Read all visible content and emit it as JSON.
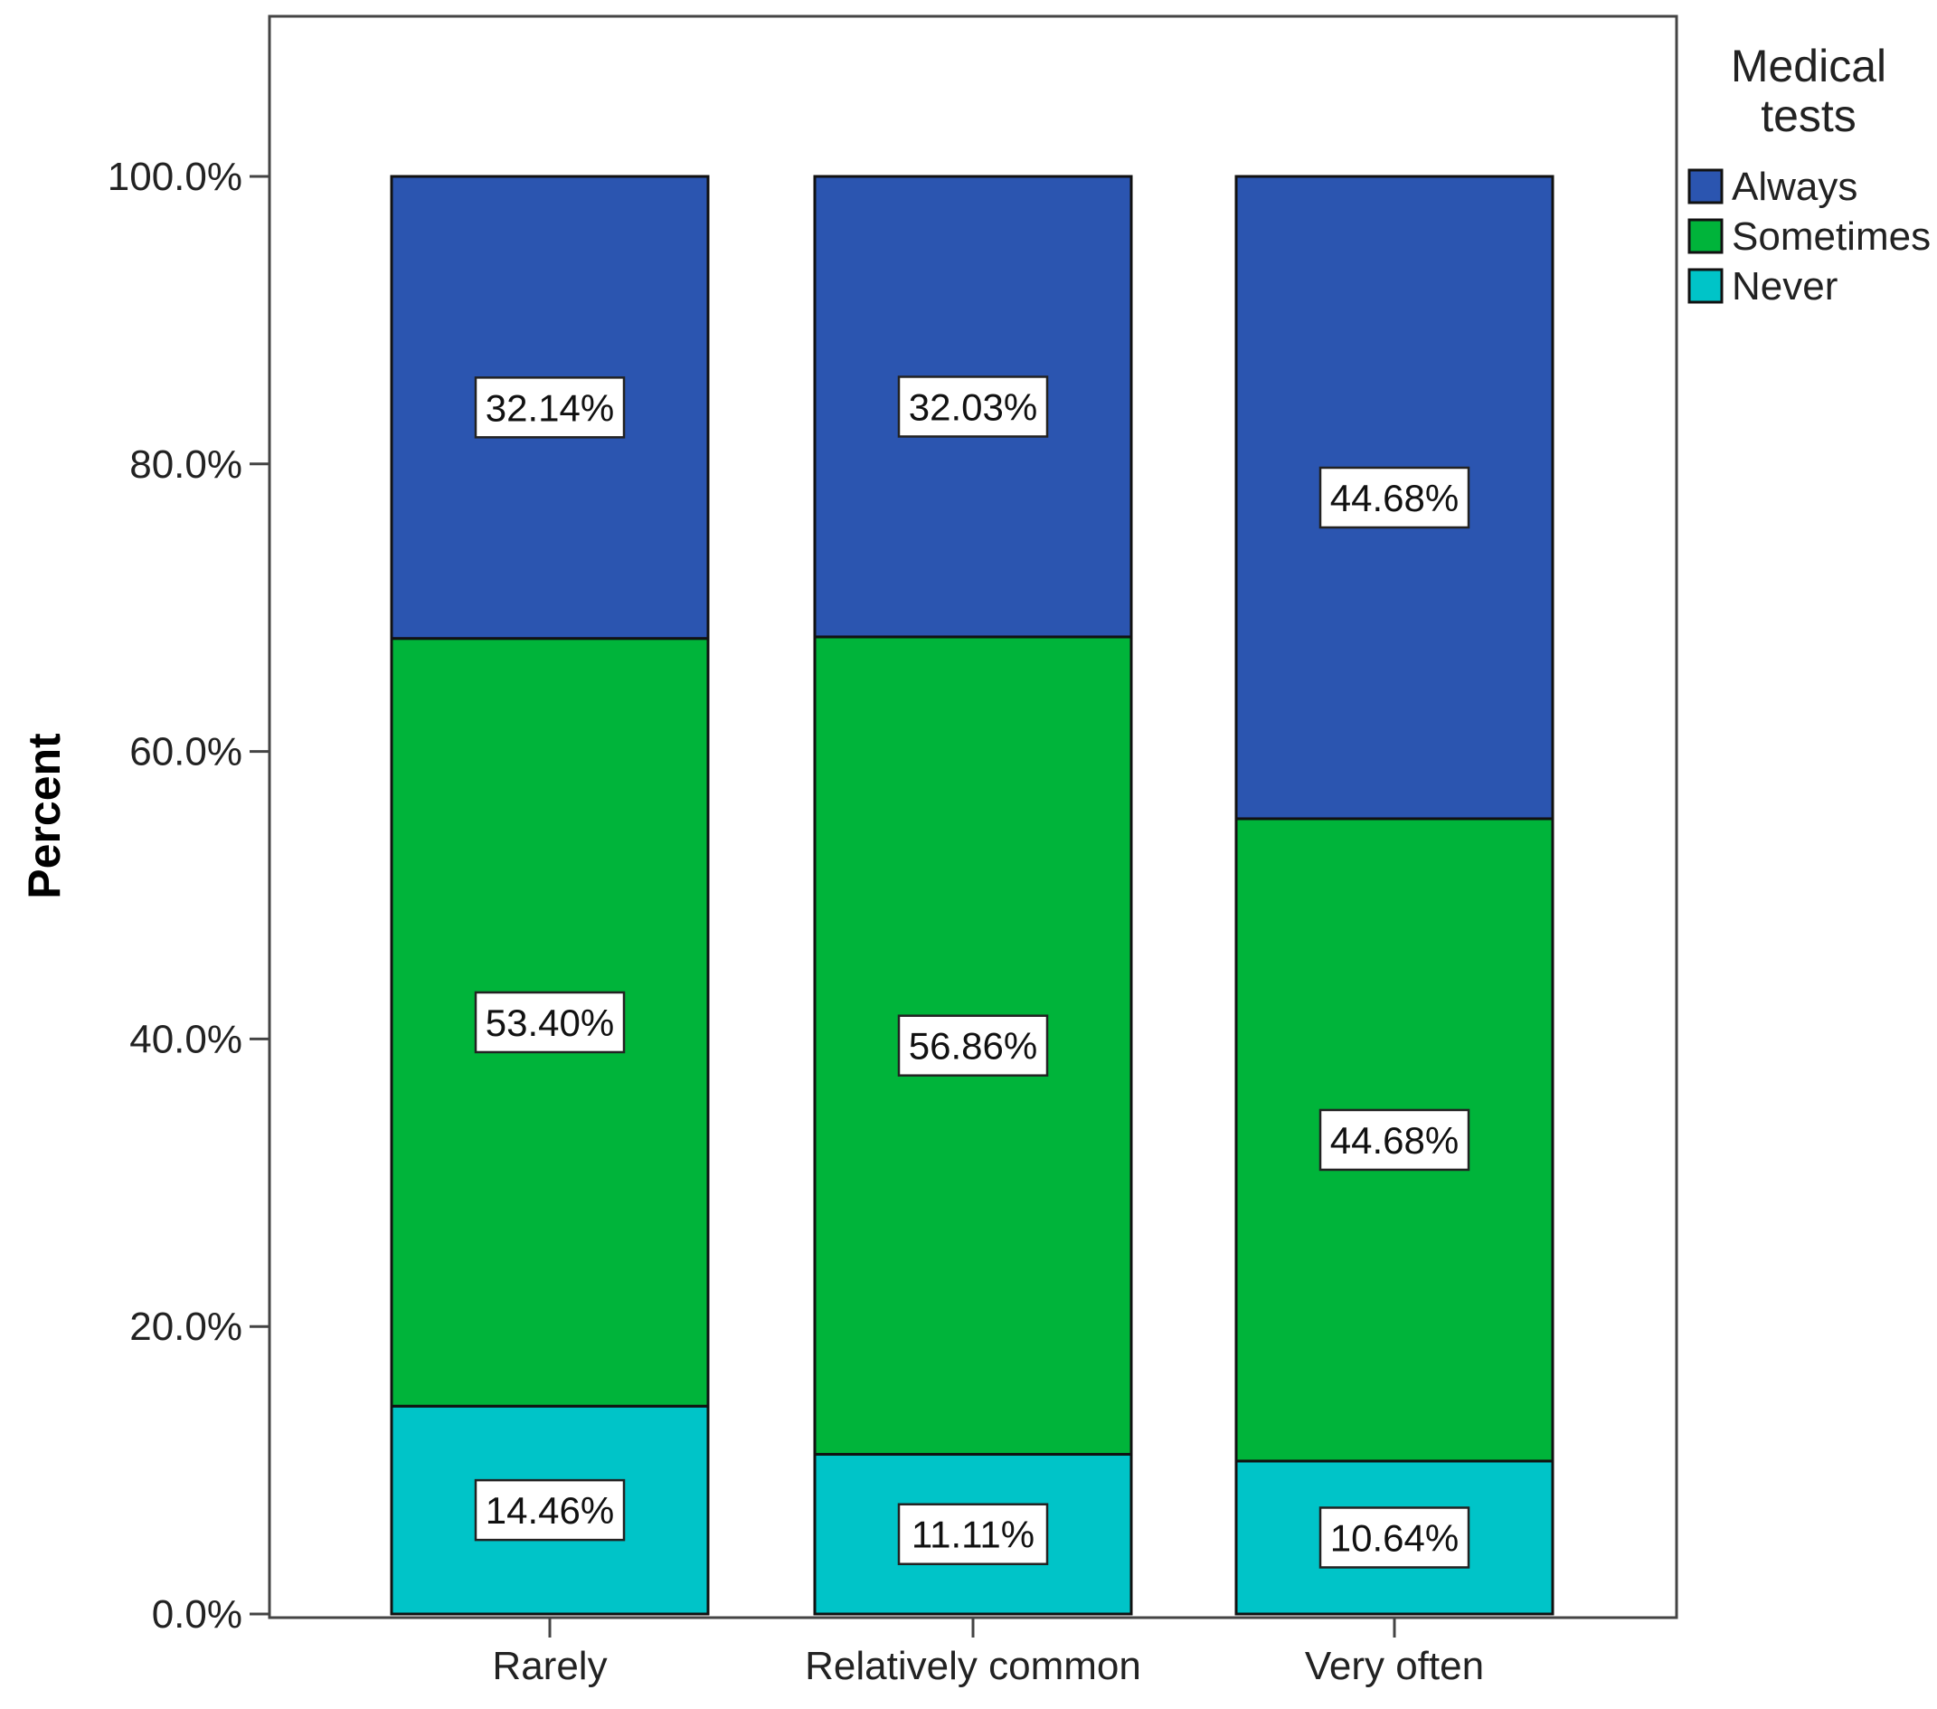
{
  "chart_data": {
    "type": "bar",
    "stacked": true,
    "categories": [
      "Rarely",
      "Relatively common",
      "Very often"
    ],
    "series": [
      {
        "name": "Never",
        "values": [
          14.46,
          11.11,
          10.64
        ],
        "labels": [
          "14.46%",
          "11.11%",
          "10.64%"
        ],
        "color": "#00C4C8"
      },
      {
        "name": "Sometimes",
        "values": [
          53.4,
          56.86,
          44.68
        ],
        "labels": [
          "53.40%",
          "56.86%",
          "44.68%"
        ],
        "color": "#00B43A"
      },
      {
        "name": "Always",
        "values": [
          32.14,
          32.03,
          44.68
        ],
        "labels": [
          "32.14%",
          "32.03%",
          "44.68%"
        ],
        "color": "#2B55B0"
      }
    ],
    "ylabel": "Percent",
    "xlabel": "",
    "ylim": [
      0,
      100
    ],
    "yticks": [
      "0.0%",
      "20.0%",
      "40.0%",
      "60.0%",
      "80.0%",
      "100.0%"
    ],
    "grid": false,
    "legend": {
      "title_lines": [
        "Medical",
        "tests"
      ],
      "placement": "top-right",
      "items": [
        "Always",
        "Sometimes",
        "Never"
      ]
    }
  }
}
